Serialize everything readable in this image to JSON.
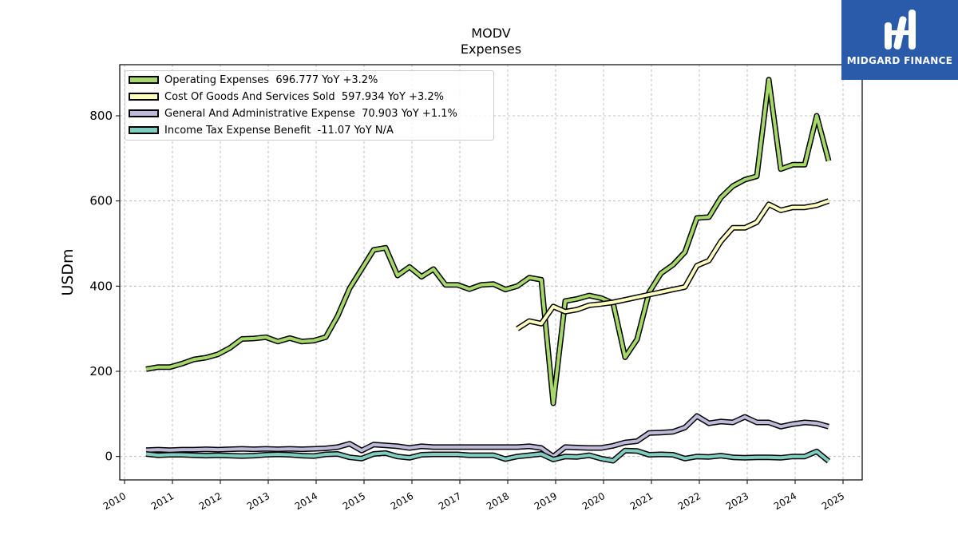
{
  "brand": {
    "name": "MIDGARD FINANCE",
    "bg_color": "#2a5aaa"
  },
  "chart_data": {
    "type": "line",
    "title": "MODV",
    "subtitle": "Expenses",
    "xlabel": "",
    "ylabel": "USDm",
    "xlim": [
      2009.9,
      2025.4
    ],
    "ylim": [
      -55,
      920
    ],
    "x_ticks": [
      "2010",
      "2011",
      "2012",
      "2013",
      "2014",
      "2015",
      "2016",
      "2017",
      "2018",
      "2019",
      "2020",
      "2021",
      "2022",
      "2023",
      "2024",
      "2025"
    ],
    "y_ticks": [
      0,
      200,
      400,
      600,
      800
    ],
    "grid": true,
    "legend_position": "top-left",
    "series": [
      {
        "name": "Operating Expenses",
        "legend_label": "Operating Expenses  696.777 YoY +3.2%",
        "color": "#a6d96a",
        "x": [
          2010.45,
          2010.7,
          2010.95,
          2011.2,
          2011.45,
          2011.7,
          2011.95,
          2012.2,
          2012.45,
          2012.7,
          2012.95,
          2013.2,
          2013.45,
          2013.7,
          2013.95,
          2014.2,
          2014.45,
          2014.7,
          2014.95,
          2015.2,
          2015.45,
          2015.7,
          2015.95,
          2016.2,
          2016.45,
          2016.7,
          2016.95,
          2017.2,
          2017.45,
          2017.7,
          2017.95,
          2018.2,
          2018.45,
          2018.7,
          2018.95,
          2019.2,
          2019.45,
          2019.7,
          2019.95,
          2020.2,
          2020.45,
          2020.7,
          2020.95,
          2021.2,
          2021.45,
          2021.7,
          2021.95,
          2022.2,
          2022.45,
          2022.7,
          2022.95,
          2023.2,
          2023.45,
          2023.7,
          2023.95,
          2024.2,
          2024.45,
          2024.7
        ],
        "values": [
          205,
          210,
          210,
          218,
          228,
          232,
          240,
          255,
          276,
          277,
          280,
          270,
          278,
          270,
          272,
          280,
          330,
          395,
          440,
          485,
          490,
          425,
          445,
          422,
          440,
          403,
          403,
          393,
          403,
          405,
          392,
          400,
          420,
          415,
          125,
          365,
          370,
          378,
          372,
          360,
          233,
          275,
          385,
          430,
          450,
          480,
          560,
          562,
          608,
          635,
          650,
          658,
          885,
          675,
          685,
          685,
          800,
          694
        ]
      },
      {
        "name": "Cost Of Goods And Services Sold",
        "legend_label": "Cost Of Goods And Services Sold  597.934 YoY +3.2%",
        "color": "#ffffbf",
        "x": [
          2018.2,
          2018.45,
          2018.7,
          2018.95,
          2019.2,
          2019.45,
          2019.7,
          2019.95,
          2020.2,
          2020.45,
          2020.7,
          2020.95,
          2021.2,
          2021.45,
          2021.7,
          2021.95,
          2022.2,
          2022.45,
          2022.7,
          2022.95,
          2023.2,
          2023.45,
          2023.7,
          2023.95,
          2024.2,
          2024.45,
          2024.7
        ],
        "values": [
          300,
          318,
          312,
          352,
          340,
          345,
          355,
          358,
          362,
          368,
          374,
          380,
          386,
          392,
          398,
          448,
          460,
          505,
          537,
          537,
          550,
          592,
          578,
          585,
          585,
          590,
          600
        ]
      },
      {
        "name": "General And Administrative Expense",
        "legend_label": "General And Administrative Expense  70.903 YoY +1.1%",
        "color": "#bebada",
        "x": [
          2010.45,
          2010.7,
          2010.95,
          2011.2,
          2011.45,
          2011.7,
          2011.95,
          2012.2,
          2012.45,
          2012.7,
          2012.95,
          2013.2,
          2013.45,
          2013.7,
          2013.95,
          2014.2,
          2014.45,
          2014.7,
          2014.95,
          2015.2,
          2015.45,
          2015.7,
          2015.95,
          2016.2,
          2016.45,
          2016.7,
          2016.95,
          2017.2,
          2017.45,
          2017.7,
          2017.95,
          2018.2,
          2018.45,
          2018.7,
          2018.95,
          2019.2,
          2019.45,
          2019.7,
          2019.95,
          2020.2,
          2020.45,
          2020.7,
          2020.95,
          2021.2,
          2021.45,
          2021.7,
          2021.95,
          2022.2,
          2022.45,
          2022.7,
          2022.95,
          2023.2,
          2023.45,
          2023.7,
          2023.95,
          2024.2,
          2024.45,
          2024.7
        ],
        "values": [
          15,
          16,
          15,
          16,
          16,
          17,
          16,
          17,
          18,
          17,
          18,
          17,
          18,
          17,
          18,
          19,
          22,
          30,
          14,
          28,
          26,
          24,
          20,
          24,
          22,
          22,
          22,
          22,
          22,
          22,
          22,
          22,
          24,
          20,
          0,
          22,
          21,
          20,
          20,
          25,
          33,
          36,
          55,
          56,
          58,
          68,
          95,
          78,
          82,
          80,
          93,
          80,
          80,
          70,
          76,
          80,
          78,
          70
        ]
      },
      {
        "name": "Income Tax Expense Benefit",
        "legend_label": "Income Tax Expense Benefit  -11.07 YoY N/A",
        "color": "#80cdc1",
        "x": [
          2010.45,
          2010.7,
          2010.95,
          2011.2,
          2011.45,
          2011.7,
          2011.95,
          2012.2,
          2012.45,
          2012.7,
          2012.95,
          2013.2,
          2013.45,
          2013.7,
          2013.95,
          2014.2,
          2014.45,
          2014.7,
          2014.95,
          2015.2,
          2015.45,
          2015.7,
          2015.95,
          2016.2,
          2016.45,
          2016.7,
          2016.95,
          2017.2,
          2017.45,
          2017.7,
          2017.95,
          2018.2,
          2018.45,
          2018.7,
          2018.95,
          2019.2,
          2019.45,
          2019.7,
          2019.95,
          2020.2,
          2020.45,
          2020.7,
          2020.95,
          2021.2,
          2021.45,
          2021.7,
          2021.95,
          2022.2,
          2022.45,
          2022.7,
          2022.95,
          2023.2,
          2023.45,
          2023.7,
          2023.95,
          2024.2,
          2024.45,
          2024.7
        ],
        "values": [
          6,
          3,
          4,
          4,
          3,
          2,
          3,
          2,
          1,
          2,
          4,
          5,
          4,
          2,
          1,
          5,
          6,
          -2,
          -5,
          6,
          8,
          0,
          -3,
          4,
          5,
          5,
          5,
          3,
          3,
          3,
          -6,
          0,
          3,
          6,
          -7,
          0,
          -1,
          3,
          -5,
          -10,
          14,
          13,
          4,
          5,
          4,
          -5,
          0,
          -1,
          2,
          -2,
          -3,
          -2,
          -2,
          -3,
          0,
          0,
          12,
          -11
        ]
      }
    ]
  }
}
